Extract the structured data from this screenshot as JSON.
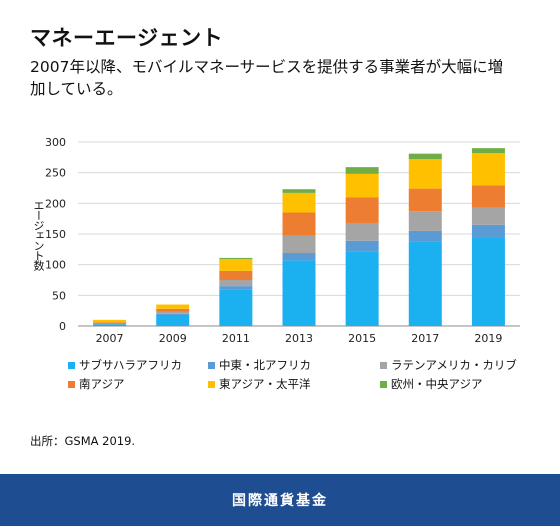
{
  "title": "マネーエージェント",
  "subtitle": "2007年以降、モバイルマネーサービスを提供する事業者が大幅に増加している。",
  "source": "出所：GSMA 2019.",
  "footer": "国際通貨基金",
  "chart_data": {
    "type": "bar",
    "stacked": true,
    "categories": [
      "2007",
      "2009",
      "2011",
      "2013",
      "2015",
      "2017",
      "2019"
    ],
    "ylabel": "エージェント数",
    "ylim": [
      0,
      300
    ],
    "yticks": [
      0,
      50,
      100,
      150,
      200,
      250,
      300
    ],
    "legend_position": "bottom",
    "series": [
      {
        "name": "サブサハラアフリカ",
        "color": "#1bb0f0",
        "values": [
          3,
          18,
          60,
          107,
          122,
          138,
          145
        ]
      },
      {
        "name": "中東・北アフリカ",
        "color": "#5b9bd5",
        "values": [
          0,
          2,
          5,
          12,
          17,
          17,
          20
        ]
      },
      {
        "name": "ラテンアメリカ・カリブ",
        "color": "#a5a5a5",
        "values": [
          1,
          3,
          10,
          28,
          29,
          32,
          28
        ]
      },
      {
        "name": "南アジア",
        "color": "#ed7d31",
        "values": [
          2,
          5,
          15,
          38,
          42,
          37,
          36
        ]
      },
      {
        "name": "東アジア・太平洋",
        "color": "#ffc000",
        "values": [
          4,
          7,
          19,
          32,
          38,
          48,
          53
        ]
      },
      {
        "name": "欧州・中央アジア",
        "color": "#70ad47",
        "values": [
          0,
          0,
          2,
          6,
          11,
          9,
          8
        ]
      }
    ]
  }
}
